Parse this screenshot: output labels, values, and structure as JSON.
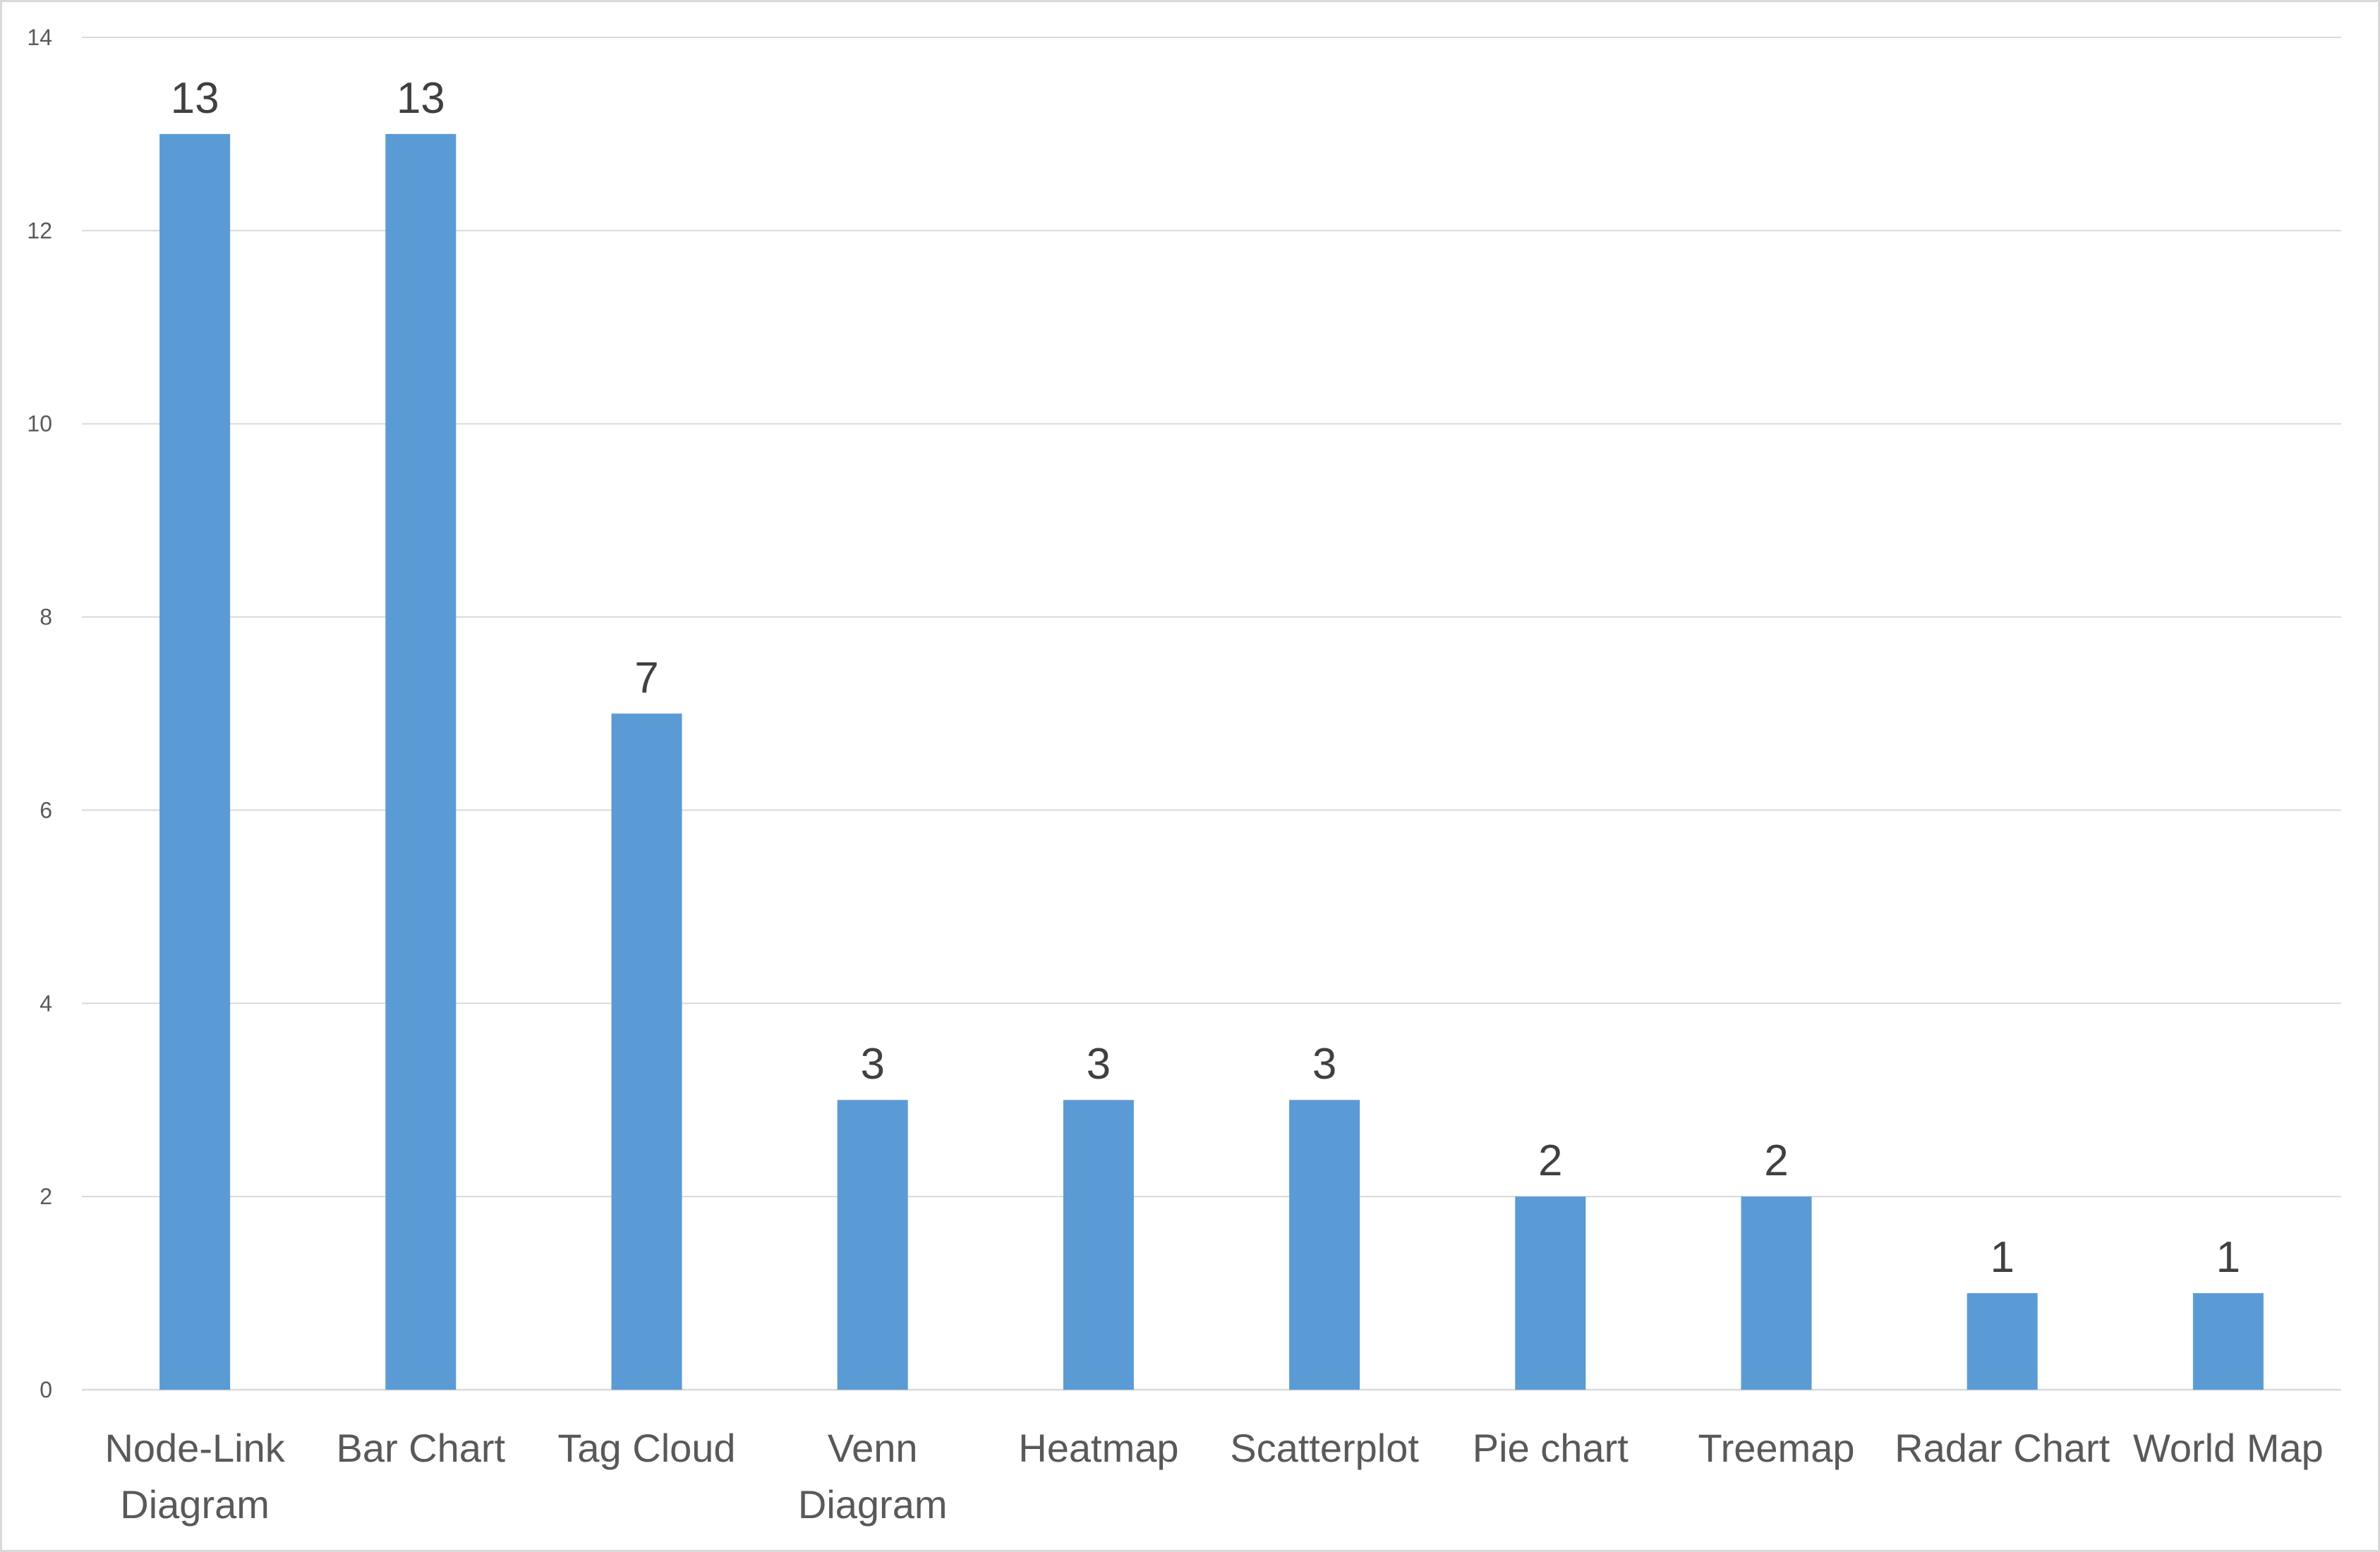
{
  "chart_data": {
    "type": "bar",
    "title": "",
    "xlabel": "",
    "ylabel": "",
    "categories": [
      [
        "Node-Link",
        "Diagram"
      ],
      [
        "Bar Chart"
      ],
      [
        "Tag Cloud"
      ],
      [
        "Venn",
        "Diagram"
      ],
      [
        "Heatmap"
      ],
      [
        "Scatterplot"
      ],
      [
        "Pie chart"
      ],
      [
        "Treemap"
      ],
      [
        "Radar Chart"
      ],
      [
        "World Map"
      ]
    ],
    "values": [
      13,
      13,
      7,
      3,
      3,
      3,
      2,
      2,
      1,
      1
    ],
    "ylim": [
      0,
      14
    ],
    "yticks": [
      0,
      2,
      4,
      6,
      8,
      10,
      12,
      14
    ],
    "grid": true,
    "legend": "none",
    "bar_color": "#5b9bd5",
    "gridline_color": "#d9d9d9",
    "tick_label_color": "#595959",
    "data_label_color": "#404040"
  }
}
